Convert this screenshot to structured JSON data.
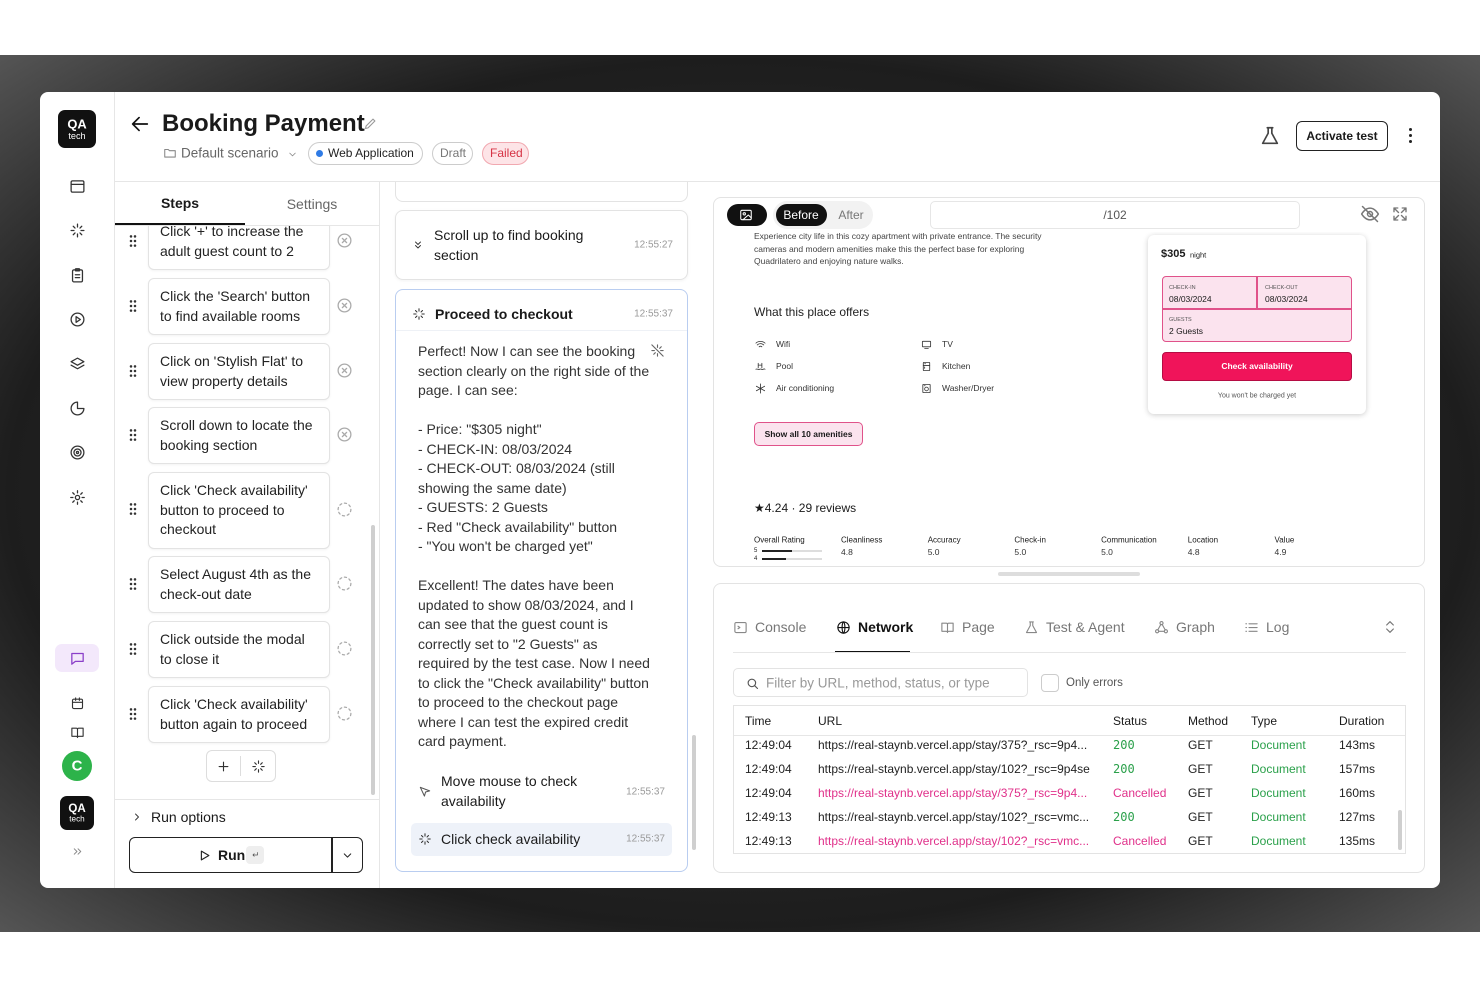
{
  "logo": {
    "top": "QA",
    "bottom": "tech"
  },
  "header": {
    "title": "Booking Payment",
    "scenario": "Default scenario",
    "tags": [
      "Web Application",
      "Draft",
      "Failed"
    ],
    "activate": "Activate test"
  },
  "tabs": [
    "Steps",
    "Settings"
  ],
  "steps": [
    "Click '+' to increase the adult guest count to 2",
    "Click the 'Search' button to find available rooms",
    "Click on 'Stylish Flat' to view property details",
    "Scroll down to locate the booking section",
    "Click 'Check availability' button to proceed to checkout",
    "Select August 4th as the check-out date",
    "Click outside the modal to close it",
    "Click 'Check availability' button again to proceed"
  ],
  "run_options": "Run options",
  "run": "Run",
  "avatar": "C",
  "chat": {
    "items": [
      {
        "title": "Scroll up to find booking section",
        "time": "12:55:27"
      },
      {
        "title": "Proceed to checkout",
        "time": "12:55:37",
        "body": [
          [
            "Perfect! Now I can see the booking section clearly on the right side of the page. I can see:"
          ],
          [
            "- Price: \"$305 night\"",
            "- CHECK-IN: 08/03/2024",
            "- CHECK-OUT: 08/03/2024 (still showing the same date)",
            "- GUESTS: 2 Guests",
            "- Red \"Check availability\" button",
            "- \"You won't be charged yet\""
          ],
          [
            "Excellent! The dates have been updated to show 08/03/2024, and I can see that the guest count is correctly set to \"2 Guests\" as required by the test case. Now I need to click the \"Check availability\" button to proceed to the checkout page where I can test the expired credit card payment."
          ]
        ]
      },
      {
        "title": "Move mouse to check availability",
        "time": "12:55:37"
      },
      {
        "title": "Click check availability",
        "time": "12:55:37"
      }
    ]
  },
  "preview": {
    "before": "Before",
    "after": "After",
    "url": "/102",
    "description": [
      "Experience city life in this cozy apartment with private entrance. The security",
      "cameras and modern amenities make this the perfect base for exploring",
      "Quadrilatero and enjoying nature walks."
    ],
    "offers_title": "What this place offers",
    "amenities": [
      "Wifi",
      "TV",
      "Pool",
      "Kitchen",
      "Air conditioning",
      "Washer/Dryer"
    ],
    "show_all": "Show all 10 amenities",
    "price": "$305",
    "price_unit": "night",
    "checkin_label": "CHECK-IN",
    "checkin": "08/03/2024",
    "checkout_label": "CHECK-OUT",
    "checkout": "08/03/2024",
    "guests_label": "GUESTS",
    "guests": "2 Guests",
    "button": "Check availability",
    "note": "You won't be charged yet",
    "rating": "★4.24 · 29 reviews",
    "overall": "Overall Rating",
    "overall_bars": [
      "5",
      "4"
    ],
    "categories": [
      {
        "name": "Cleanliness",
        "value": "4.8"
      },
      {
        "name": "Accuracy",
        "value": "5.0"
      },
      {
        "name": "Check-in",
        "value": "5.0"
      },
      {
        "name": "Communication",
        "value": "5.0"
      },
      {
        "name": "Location",
        "value": "4.8"
      },
      {
        "name": "Value",
        "value": "4.9"
      }
    ]
  },
  "devtools": {
    "tabs": [
      "Console",
      "Network",
      "Page",
      "Test & Agent",
      "Graph",
      "Log"
    ],
    "filter": "Filter by URL, method, status, or type",
    "only_errors": "Only errors",
    "columns": [
      "Time",
      "URL",
      "Status",
      "Method",
      "Type",
      "Duration"
    ],
    "rows": [
      [
        "12:49:04",
        "https://real-staynb.vercel.app/stay/375?_rsc=9p4...",
        "200",
        "GET",
        "Document",
        "143ms"
      ],
      [
        "12:49:04",
        "https://real-staynb.vercel.app/stay/102?_rsc=9p4se",
        "200",
        "GET",
        "Document",
        "157ms"
      ],
      [
        "12:49:04",
        "https://real-staynb.vercel.app/stay/375?_rsc=9p4...",
        "Cancelled",
        "GET",
        "Document",
        "160ms"
      ],
      [
        "12:49:13",
        "https://real-staynb.vercel.app/stay/102?_rsc=vmc...",
        "200",
        "GET",
        "Document",
        "127ms"
      ],
      [
        "12:49:13",
        "https://real-staynb.vercel.app/stay/102?_rsc=vmc...",
        "Cancelled",
        "GET",
        "Document",
        "135ms"
      ]
    ]
  }
}
